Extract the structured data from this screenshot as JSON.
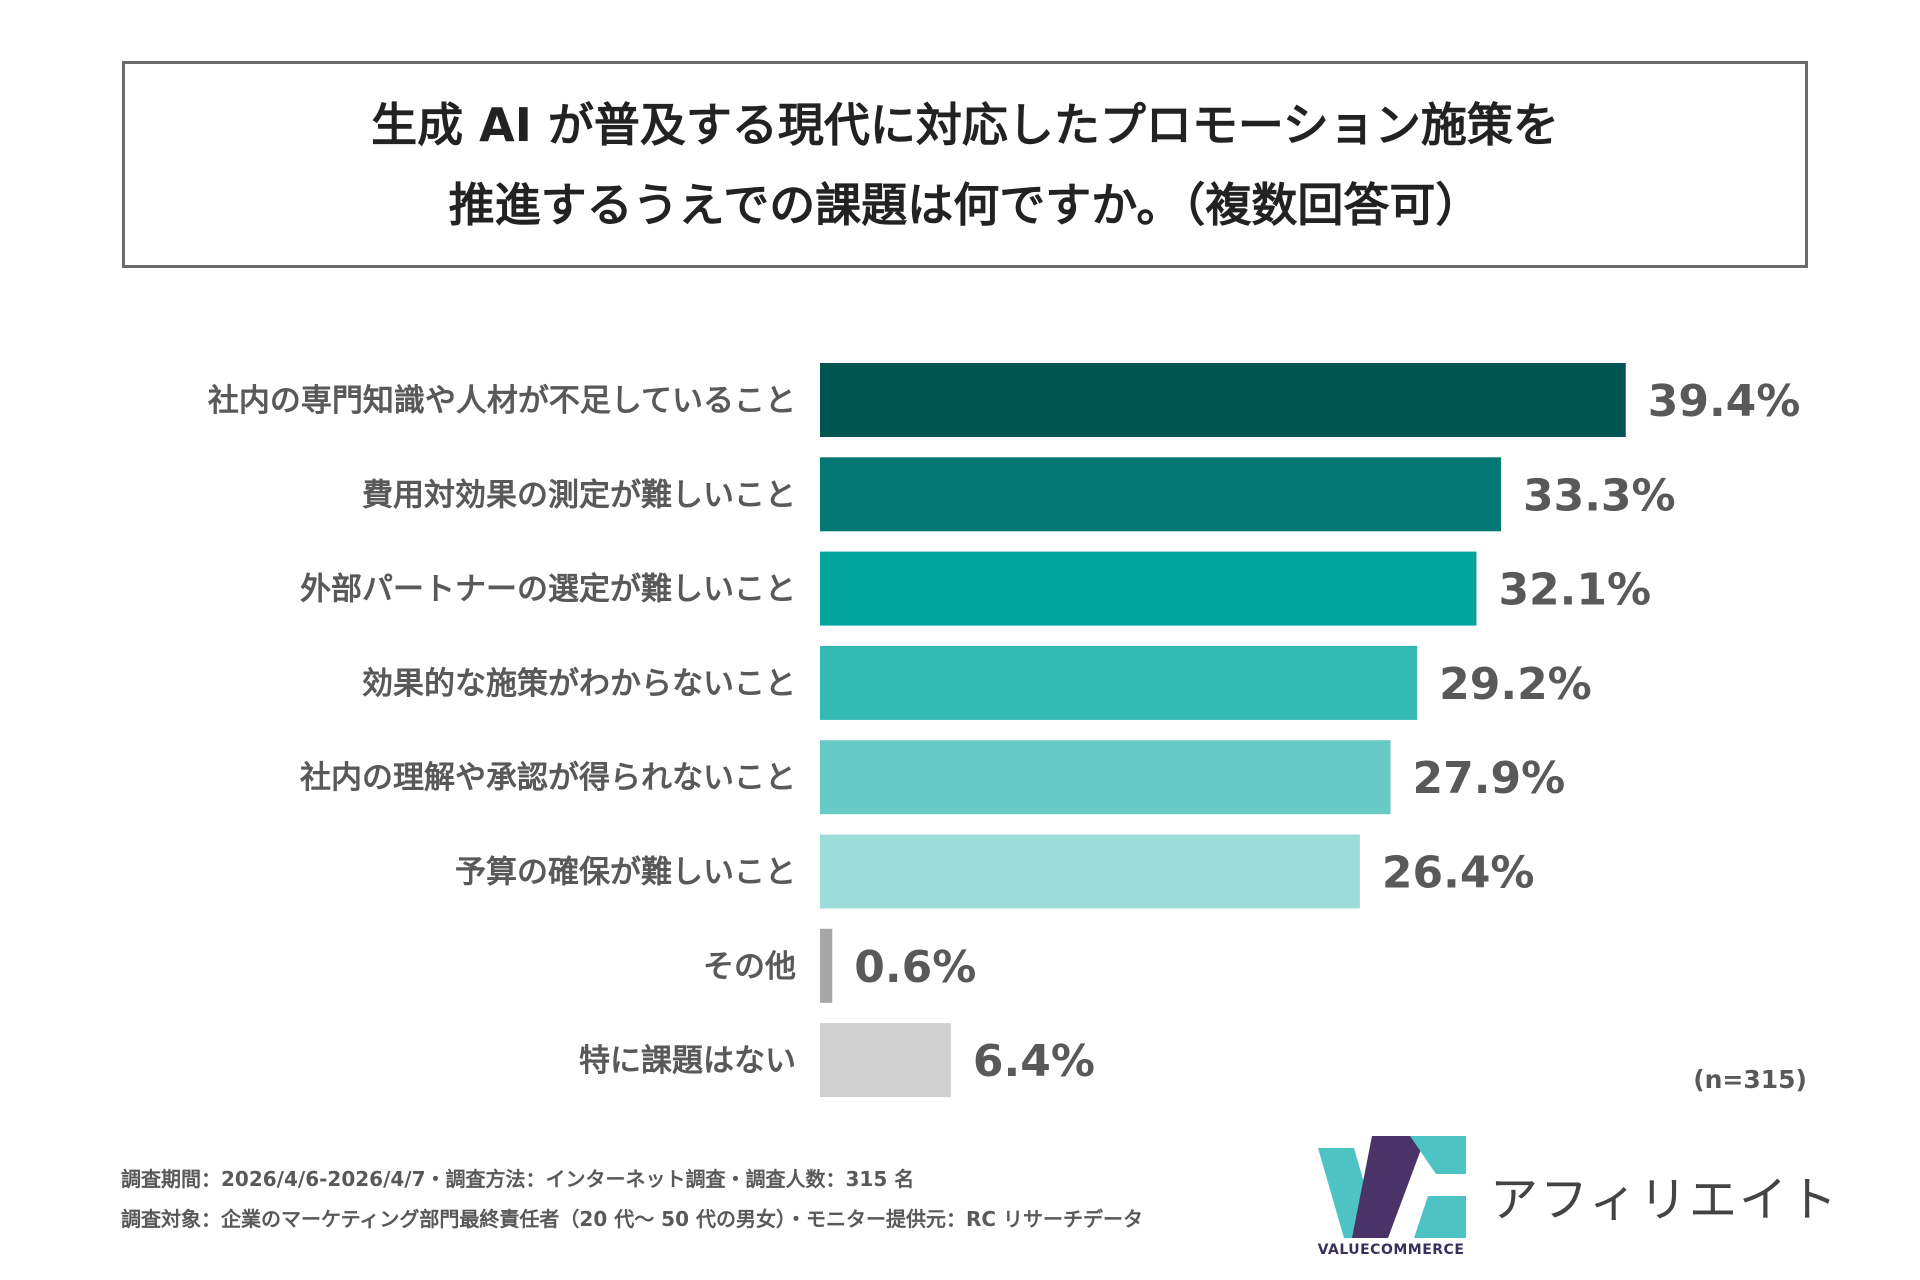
{
  "chart_data": {
    "type": "bar",
    "orientation": "horizontal",
    "title_lines": [
      "生成 AI が普及する現代に対応したプロモーション施策を",
      "推進するうえでの課題は何ですか。（複数回答可）"
    ],
    "categories": [
      "社内の専門知識や人材が不足していること",
      "費用対効果の測定が難しいこと",
      "外部パートナーの選定が難しいこと",
      "効果的な施策がわからないこと",
      "社内の理解や承認が得られないこと",
      "予算の確保が難しいこと",
      "その他",
      "特に課題はない"
    ],
    "values": [
      39.4,
      33.3,
      32.1,
      29.2,
      27.9,
      26.4,
      0.6,
      6.4
    ],
    "value_labels": [
      "39.4%",
      "33.3%",
      "32.1%",
      "29.2%",
      "27.9%",
      "26.4%",
      "0.6%",
      "6.4%"
    ],
    "colors": [
      "#015551",
      "#017874",
      "#01a59e",
      "#33b8b2",
      "#68cac5",
      "#9cdcd9",
      "#a6a6a6",
      "#d0d0d0"
    ],
    "xlim": [
      0,
      40
    ],
    "grid": false,
    "legend": "none",
    "sample_note": "(n=315)"
  },
  "footer": {
    "line1": "調査期間：2026/4/6-2026/4/7・調査方法：インターネット調査・調査人数：315 名",
    "line2": "調査対象：企業のマーケティング部門最終責任者（20 代～ 50 代の男女）・モニター提供元：RC リサーチデータ"
  },
  "logo": {
    "brand_text": "VALUECOMMERCE",
    "product_text": "アフィリエイト",
    "colors": {
      "teal": "#4ec3c3",
      "purple": "#4a3366"
    }
  }
}
